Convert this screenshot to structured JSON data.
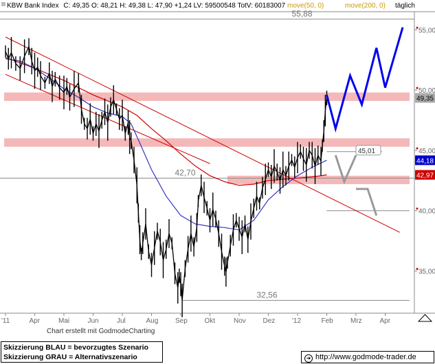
{
  "header": {
    "name": "KBW Bank Index",
    "ohlc": "C: 49,35  O: 48,21  H: 49,38  L: 47,90  +1,24  LV: 59500548  TotV: 60183007",
    "ma50": "move(50, 0)",
    "ma200": "move(200, 0)",
    "interval": "täglich"
  },
  "credit": "Chart erstellt mit GodmodeCharting",
  "legend": {
    "line1": "Skizzierung BLAU = bevorzugtes Szenario",
    "line2": "Skizzierung GRAU = Alternativszenario"
  },
  "url": "http://www.godmode-trader.de",
  "colors": {
    "price": "#000000",
    "ma50": "#3333cc",
    "ma200": "#cc0000",
    "zone": "#f4b8b8",
    "blue_scenario": "#0000ee",
    "grey_scenario": "#999999",
    "label_blue": "#0000cc",
    "label_red": "#cc0000"
  },
  "chart_data": {
    "type": "line",
    "title": "KBW Bank Index",
    "y_axis": {
      "ticks": [
        {
          "value": 35,
          "label": "35,00"
        },
        {
          "value": 40,
          "label": "40,00"
        },
        {
          "value": 45,
          "label": "45,00"
        },
        {
          "value": 50,
          "label": "50,00"
        },
        {
          "value": 55,
          "label": "55,00"
        }
      ],
      "range": [
        31.5,
        56.5
      ]
    },
    "x_axis": {
      "labels": [
        {
          "label": "'11",
          "month": 0
        },
        {
          "label": "Apr",
          "month": 1
        },
        {
          "label": "Mai",
          "month": 2
        },
        {
          "label": "Jun",
          "month": 3
        },
        {
          "label": "Jul",
          "month": 4
        },
        {
          "label": "Aug",
          "month": 5
        },
        {
          "label": "Sep",
          "month": 6
        },
        {
          "label": "Okt",
          "month": 7
        },
        {
          "label": "Nov",
          "month": 8
        },
        {
          "label": "Dez",
          "month": 9
        },
        {
          "label": "'12",
          "month": 10
        },
        {
          "label": "Feb",
          "month": 11
        },
        {
          "label": "Mrz",
          "month": 12
        },
        {
          "label": "Apr",
          "month": 13
        }
      ]
    },
    "price_series": [
      [
        0.0,
        53.2
      ],
      [
        0.1,
        52.6
      ],
      [
        0.2,
        53.1
      ],
      [
        0.35,
        52.2
      ],
      [
        0.5,
        51.8
      ],
      [
        0.65,
        52.8
      ],
      [
        0.8,
        53.6
      ],
      [
        0.9,
        52.4
      ],
      [
        1.0,
        51.6
      ],
      [
        1.1,
        51.9
      ],
      [
        1.2,
        51.2
      ],
      [
        1.35,
        50.6
      ],
      [
        1.5,
        51.4
      ],
      [
        1.6,
        50.3
      ],
      [
        1.7,
        50.9
      ],
      [
        1.85,
        50.2
      ],
      [
        2.0,
        49.8
      ],
      [
        2.1,
        50.3
      ],
      [
        2.2,
        49.4
      ],
      [
        2.35,
        50.1
      ],
      [
        2.5,
        50.6
      ],
      [
        2.6,
        48.4
      ],
      [
        2.7,
        47.2
      ],
      [
        2.8,
        46.8
      ],
      [
        2.9,
        47.6
      ],
      [
        3.0,
        46.4
      ],
      [
        3.1,
        47.2
      ],
      [
        3.2,
        46.6
      ],
      [
        3.3,
        47.5
      ],
      [
        3.4,
        48.2
      ],
      [
        3.5,
        47.3
      ],
      [
        3.6,
        48.6
      ],
      [
        3.7,
        49.2
      ],
      [
        3.8,
        48.4
      ],
      [
        3.9,
        47.6
      ],
      [
        4.0,
        47.9
      ],
      [
        4.1,
        46.4
      ],
      [
        4.2,
        47.3
      ],
      [
        4.25,
        46.1
      ],
      [
        4.3,
        45.8
      ],
      [
        4.4,
        44.2
      ],
      [
        4.5,
        42.1
      ],
      [
        4.55,
        39.8
      ],
      [
        4.6,
        37.6
      ],
      [
        4.65,
        36.4
      ],
      [
        4.7,
        37.3
      ],
      [
        4.8,
        38.9
      ],
      [
        4.9,
        36.6
      ],
      [
        5.0,
        35.5
      ],
      [
        5.1,
        36.9
      ],
      [
        5.2,
        38.3
      ],
      [
        5.3,
        37.4
      ],
      [
        5.4,
        35.9
      ],
      [
        5.5,
        36.8
      ],
      [
        5.6,
        38.1
      ],
      [
        5.7,
        37.3
      ],
      [
        5.8,
        34.8
      ],
      [
        5.9,
        33.6
      ],
      [
        5.95,
        34.6
      ],
      [
        6.0,
        33.9
      ],
      [
        6.05,
        32.56
      ],
      [
        6.15,
        35.2
      ],
      [
        6.25,
        36.8
      ],
      [
        6.35,
        38.1
      ],
      [
        6.45,
        37.0
      ],
      [
        6.55,
        38.6
      ],
      [
        6.6,
        40.8
      ],
      [
        6.7,
        42.1
      ],
      [
        6.8,
        41.1
      ],
      [
        6.9,
        40.2
      ],
      [
        7.0,
        39.2
      ],
      [
        7.1,
        40.1
      ],
      [
        7.2,
        39.3
      ],
      [
        7.3,
        38.1
      ],
      [
        7.4,
        36.6
      ],
      [
        7.5,
        35.4
      ],
      [
        7.55,
        34.9
      ],
      [
        7.6,
        35.7
      ],
      [
        7.7,
        37.1
      ],
      [
        7.8,
        38.4
      ],
      [
        7.9,
        39.2
      ],
      [
        8.0,
        38.5
      ],
      [
        8.1,
        37.8
      ],
      [
        8.2,
        38.9
      ],
      [
        8.3,
        37.6
      ],
      [
        8.4,
        39.1
      ],
      [
        8.5,
        40.2
      ],
      [
        8.6,
        41.2
      ],
      [
        8.7,
        40.6
      ],
      [
        8.8,
        41.9
      ],
      [
        8.9,
        42.6
      ],
      [
        9.0,
        43.4
      ],
      [
        9.1,
        42.8
      ],
      [
        9.2,
        43.7
      ],
      [
        9.3,
        43.2
      ],
      [
        9.4,
        42.5
      ],
      [
        9.5,
        43.4
      ],
      [
        9.6,
        42.9
      ],
      [
        9.7,
        43.7
      ],
      [
        9.8,
        44.2
      ],
      [
        9.9,
        43.6
      ],
      [
        10.0,
        44.4
      ],
      [
        10.1,
        44.9
      ],
      [
        10.2,
        44.3
      ],
      [
        10.3,
        43.8
      ],
      [
        10.4,
        45.0
      ],
      [
        10.5,
        44.6
      ],
      [
        10.6,
        43.7
      ],
      [
        10.7,
        44.6
      ],
      [
        10.8,
        44.1
      ],
      [
        10.85,
        45.4
      ],
      [
        10.9,
        46.6
      ],
      [
        10.95,
        48.3
      ],
      [
        11.0,
        49.35
      ]
    ],
    "ma50_series": [
      [
        0.0,
        52.6
      ],
      [
        0.5,
        52.4
      ],
      [
        1.0,
        51.8
      ],
      [
        1.5,
        51.0
      ],
      [
        2.0,
        50.1
      ],
      [
        2.5,
        49.4
      ],
      [
        3.0,
        48.6
      ],
      [
        3.5,
        48.1
      ],
      [
        4.0,
        47.8
      ],
      [
        4.3,
        47.2
      ],
      [
        4.6,
        45.6
      ],
      [
        5.0,
        43.4
      ],
      [
        5.5,
        41.2
      ],
      [
        6.0,
        39.6
      ],
      [
        6.5,
        38.9
      ],
      [
        7.0,
        38.7
      ],
      [
        7.5,
        38.6
      ],
      [
        8.0,
        38.4
      ],
      [
        8.5,
        39.2
      ],
      [
        9.0,
        40.9
      ],
      [
        9.5,
        42.0
      ],
      [
        10.0,
        42.9
      ],
      [
        10.5,
        43.6
      ],
      [
        11.0,
        44.18
      ]
    ],
    "ma200_series": [
      [
        0.0,
        52.7
      ],
      [
        1.0,
        51.8
      ],
      [
        2.0,
        50.8
      ],
      [
        3.0,
        49.6
      ],
      [
        4.0,
        48.6
      ],
      [
        4.5,
        47.9
      ],
      [
        5.0,
        46.8
      ],
      [
        5.5,
        45.8
      ],
      [
        6.0,
        44.7
      ],
      [
        6.5,
        43.7
      ],
      [
        7.0,
        42.9
      ],
      [
        7.5,
        42.4
      ],
      [
        8.0,
        42.1
      ],
      [
        8.5,
        42.2
      ],
      [
        9.0,
        42.5
      ],
      [
        9.5,
        42.6
      ],
      [
        10.0,
        42.7
      ],
      [
        10.5,
        42.8
      ],
      [
        11.0,
        42.97
      ]
    ],
    "trend_lines": [
      {
        "from": [
          0.0,
          54.4
        ],
        "to": [
          13.5,
          38.2
        ]
      },
      {
        "from": [
          0.0,
          51.3
        ],
        "to": [
          7.0,
          43.9
        ]
      }
    ],
    "zones": [
      {
        "low": 49.1,
        "high": 49.8
      },
      {
        "low": 45.3,
        "high": 46.0
      },
      {
        "low": 42.2,
        "high": 42.9
      }
    ],
    "horizontal_lines": [
      {
        "value": 55.88,
        "label": "55,88",
        "label_month": 9.8
      },
      {
        "value": 42.7,
        "label": "42,70",
        "label_month": 5.8
      },
      {
        "value": 32.56,
        "label": "32,56",
        "label_month": 8.6
      },
      {
        "value": 44.9,
        "label": "",
        "label_month": 0
      },
      {
        "value": 40.0,
        "label": "",
        "label_month": 0
      }
    ],
    "scenario_blue": [
      [
        11.0,
        49.6
      ],
      [
        11.3,
        46.8
      ],
      [
        11.8,
        51.2
      ],
      [
        12.2,
        48.8
      ],
      [
        12.7,
        53.5
      ],
      [
        13.0,
        50.2
      ],
      [
        13.6,
        55.2
      ]
    ],
    "scenario_grey": [
      [
        11.3,
        44.6
      ],
      [
        11.6,
        42.4
      ],
      [
        12.0,
        44.6
      ],
      [
        12.0,
        41.8
      ],
      [
        12.4,
        41.8
      ],
      [
        12.7,
        39.6
      ]
    ],
    "right_labels": [
      {
        "value": 49.35,
        "label": "49,35",
        "style": "grey"
      },
      {
        "value": 45.01,
        "label": "45,01",
        "style": "callout"
      },
      {
        "value": 44.18,
        "label": "44,18",
        "style": "blue"
      },
      {
        "value": 42.97,
        "label": "42,97",
        "style": "red"
      }
    ]
  }
}
